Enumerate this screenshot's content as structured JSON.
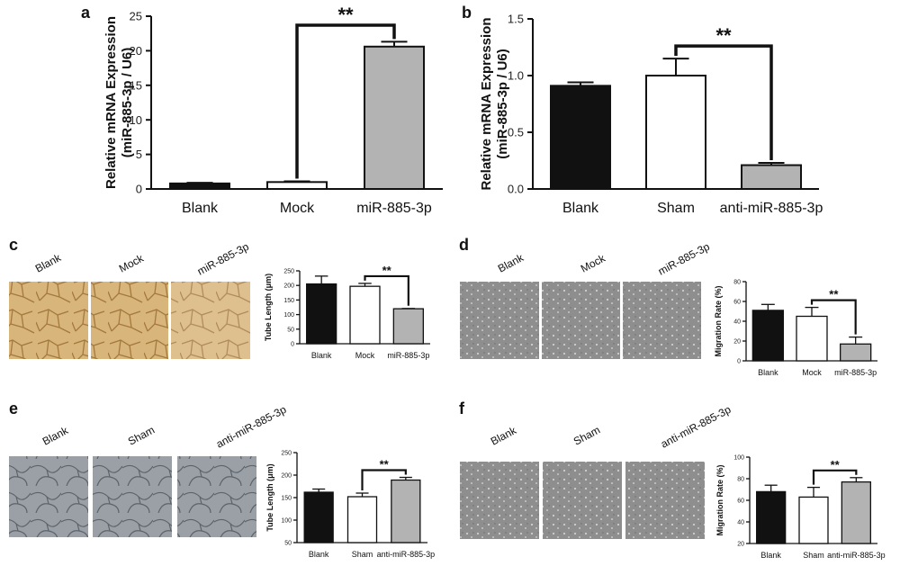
{
  "figure": {
    "panels": [
      {
        "id": "a",
        "label": "a"
      },
      {
        "id": "b",
        "label": "b"
      },
      {
        "id": "c",
        "label": "c",
        "photo_titles": [
          "Blank",
          "Mock",
          "miR-885-3p"
        ]
      },
      {
        "id": "d",
        "label": "d",
        "photo_titles": [
          "Blank",
          "Mock",
          "miR-885-3p"
        ]
      },
      {
        "id": "e",
        "label": "e",
        "photo_titles": [
          "Blank",
          "Sham",
          "anti-miR-885-3p"
        ]
      },
      {
        "id": "f",
        "label": "f",
        "photo_titles": [
          "Blank",
          "Sham",
          "anti-miR-885-3p"
        ]
      }
    ]
  },
  "colors": {
    "blank": "#111111",
    "control": "#ffffff",
    "treated": "#b3b3b3",
    "tube_photo": "#d8b57a",
    "tube_photo_dark": "#b08550",
    "migration_photo": "#9a9a9a",
    "matrigel_photo": "#8a9097"
  },
  "chart_data": [
    {
      "panel": "a",
      "type": "bar",
      "ylabel": "Relative mRNA Expression\n(miR-885-3p / U6)",
      "categories": [
        "Blank",
        "Mock",
        "miR-885-3p"
      ],
      "values": [
        0.8,
        1.0,
        20.6
      ],
      "errors": [
        0.1,
        0.1,
        0.7
      ],
      "ylim": [
        0,
        25
      ],
      "yticks": [
        0,
        5,
        10,
        15,
        20,
        25
      ],
      "significance": {
        "from": 1,
        "to": 2,
        "label": "**"
      }
    },
    {
      "panel": "b",
      "type": "bar",
      "ylabel": "Relative mRNA Expression\n(miR-885-3p / U6)",
      "categories": [
        "Blank",
        "Sham",
        "anti-miR-885-3p"
      ],
      "values": [
        0.91,
        1.0,
        0.21
      ],
      "errors": [
        0.03,
        0.15,
        0.02
      ],
      "ylim": [
        0,
        1.5
      ],
      "yticks": [
        "0.0",
        "0.5",
        "1.0",
        "1.5"
      ],
      "significance": {
        "from": 1,
        "to": 2,
        "label": "**"
      }
    },
    {
      "panel": "c",
      "type": "bar",
      "ylabel": "Tube Length (μm)",
      "categories": [
        "Blank",
        "Mock",
        "miR-885-3p"
      ],
      "values": [
        205,
        197,
        120
      ],
      "errors": [
        27,
        10,
        1
      ],
      "ylim": [
        0,
        250
      ],
      "yticks": [
        0,
        50,
        100,
        150,
        200,
        250
      ],
      "significance": {
        "from": 1,
        "to": 2,
        "label": "**"
      }
    },
    {
      "panel": "d",
      "type": "bar",
      "ylabel": "Migration Rate (%)",
      "categories": [
        "Blank",
        "Mock",
        "miR-885-3p"
      ],
      "values": [
        51,
        45,
        17
      ],
      "errors": [
        6,
        9,
        7
      ],
      "ylim": [
        0,
        80
      ],
      "yticks": [
        0,
        20,
        40,
        60,
        80
      ],
      "significance": {
        "from": 1,
        "to": 2,
        "label": "**"
      }
    },
    {
      "panel": "e",
      "type": "bar",
      "ylabel": "Tube Length (μm)",
      "categories": [
        "Blank",
        "Sham",
        "anti-miR-885-3p"
      ],
      "values": [
        162,
        152,
        189
      ],
      "errors": [
        7,
        8,
        6
      ],
      "ylim": [
        50,
        250
      ],
      "yticks": [
        50,
        100,
        150,
        200,
        250
      ],
      "significance": {
        "from": 1,
        "to": 2,
        "label": "**"
      }
    },
    {
      "panel": "f",
      "type": "bar",
      "ylabel": "Migration Rate (%)",
      "categories": [
        "Blank",
        "Sham",
        "anti-miR-885-3p"
      ],
      "values": [
        68,
        63,
        77
      ],
      "errors": [
        6,
        9,
        4
      ],
      "ylim": [
        20,
        100
      ],
      "yticks": [
        20,
        40,
        60,
        80,
        100
      ],
      "significance": {
        "from": 1,
        "to": 2,
        "label": "**"
      }
    }
  ]
}
